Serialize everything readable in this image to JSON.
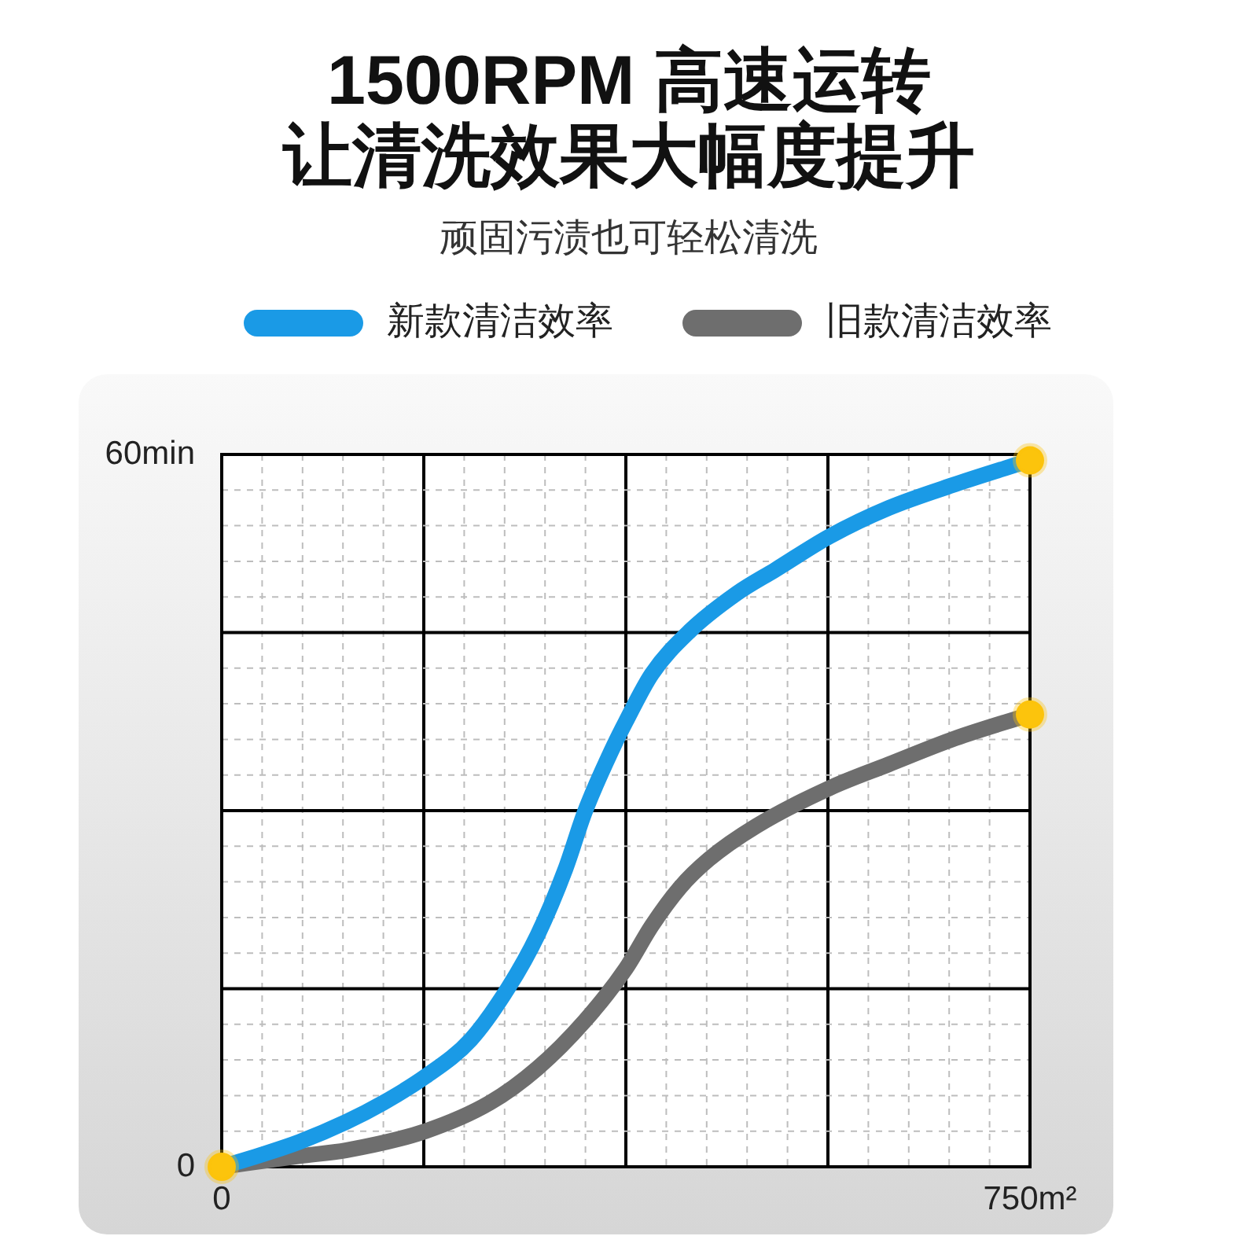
{
  "chart_data": {
    "type": "line",
    "title": "1500RPM 高速运转让清洗效果大幅度提升",
    "subtitle": "顽固污渍也可轻松清洗",
    "xlim": [
      0,
      750
    ],
    "xticks": [
      {
        "value": 0,
        "label": "0"
      },
      {
        "value": 187.5,
        "label": null
      },
      {
        "value": 375,
        "label": null
      },
      {
        "value": 562.5,
        "label": null
      },
      {
        "value": 750,
        "label": "750m²"
      }
    ],
    "ylim": [
      0,
      60
    ],
    "yticks": [
      {
        "value": 0,
        "label": "0"
      },
      {
        "value": 15,
        "label": null
      },
      {
        "value": 30,
        "label": null
      },
      {
        "value": 45,
        "label": null
      },
      {
        "value": 60,
        "label": "60min"
      }
    ],
    "grid": true,
    "legend": "top",
    "series": [
      {
        "name": "新款清洁效率",
        "color": "#1a9ae6",
        "x": [
          0,
          36,
          72,
          116,
          150,
          189,
          231,
          266,
          293,
          319,
          337,
          364,
          375,
          399,
          434,
          478,
          514,
          564,
          619,
          681,
          750
        ],
        "values": [
          0,
          1.0,
          2.1,
          3.8,
          5.4,
          7.6,
          10.7,
          15.1,
          19.5,
          25.1,
          29.9,
          35.5,
          37.5,
          41.5,
          45.1,
          48.3,
          50.3,
          53.1,
          55.5,
          57.5,
          59.5
        ]
      },
      {
        "name": "旧款清洁效率",
        "color": "#6e6e6e",
        "x": [
          0,
          72,
          116,
          189,
          249,
          293,
          337,
          375,
          399,
          425,
          452,
          496,
          564,
          619,
          681,
          750
        ],
        "values": [
          0,
          0.9,
          1.4,
          3.0,
          5.4,
          8.3,
          12.3,
          16.7,
          20.3,
          23.5,
          25.9,
          28.7,
          31.9,
          33.9,
          36.1,
          38.1
        ]
      },
      {
        "type": "scatter",
        "color": "#fcc40c",
        "marker": "circle",
        "x": [
          0,
          750,
          750
        ],
        "values": [
          0,
          59.5,
          38.1
        ]
      }
    ]
  }
}
